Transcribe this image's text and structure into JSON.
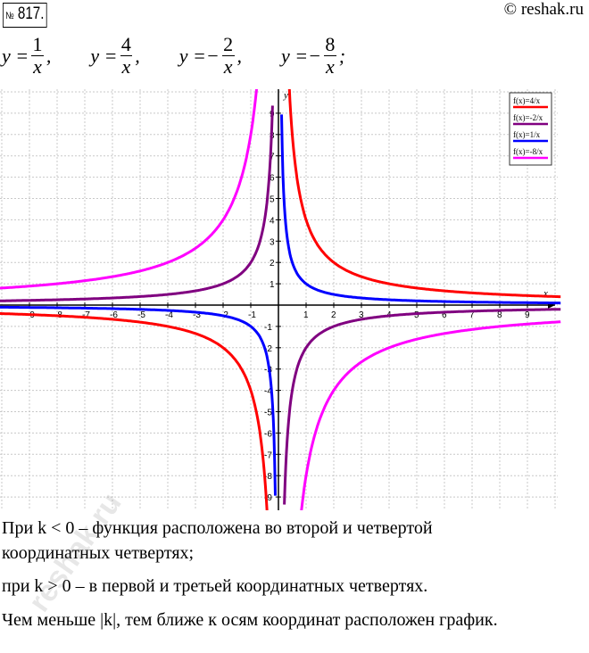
{
  "header": {
    "number_prefix": "№",
    "number": "817.",
    "copyright": "© reshak.ru"
  },
  "formulas": [
    {
      "lhs": "y =",
      "sign": "",
      "num": "1",
      "den": "x",
      "end": ","
    },
    {
      "lhs": "y =",
      "sign": "",
      "num": "4",
      "den": "x",
      "end": ","
    },
    {
      "lhs": "y =",
      "sign": "−",
      "num": "2",
      "den": "x",
      "end": ","
    },
    {
      "lhs": "y =",
      "sign": "−",
      "num": "8",
      "den": "x",
      "end": ";"
    }
  ],
  "chart_data": {
    "type": "line",
    "xlim": [
      -10,
      10
    ],
    "ylim": [
      -9.5,
      10
    ],
    "xlabel": "x",
    "ylabel": "y",
    "x_ticks": [
      -9,
      -8,
      -7,
      -6,
      -5,
      -4,
      -3,
      -2,
      -1,
      1,
      2,
      3,
      4,
      5,
      6,
      7,
      8,
      9
    ],
    "y_ticks": [
      -9,
      -8,
      -7,
      -6,
      -5,
      -4,
      -3,
      -2,
      -1,
      1,
      2,
      3,
      4,
      5,
      6,
      7,
      8,
      9
    ],
    "grid": true,
    "legend_position": "top-right",
    "series": [
      {
        "name": "f(x)=4/x",
        "k": 4,
        "color": "#ff0000"
      },
      {
        "name": "f(x)=-2/x",
        "k": -2,
        "color": "#800080"
      },
      {
        "name": "f(x)=1/x",
        "k": 1,
        "color": "#0000ff"
      },
      {
        "name": "f(x)=-8/x",
        "k": -8,
        "color": "#ff00ff"
      }
    ]
  },
  "text": {
    "line1": "При k < 0 – функция расположена во второй и четвертой",
    "line2": "координатных четвертях;",
    "line3": "при k > 0 – в первой и третьей координатных четвертях.",
    "line4": "Чем меньше |k|, тем ближе к осям координат расположен график."
  },
  "watermark": "reshak.ru"
}
